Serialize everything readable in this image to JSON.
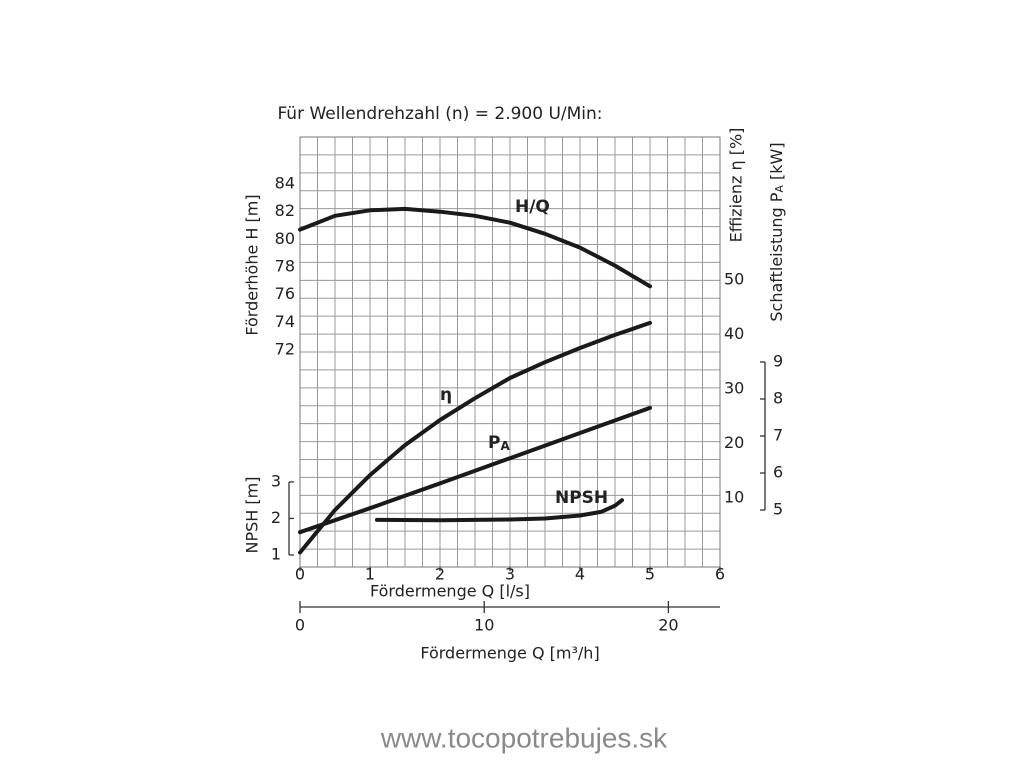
{
  "chart_data": {
    "type": "line",
    "title": "Für Wellendrehzahl (n) = 2.900 U/Min:",
    "x_title": "Fördermenge Q [l/s]",
    "xlim": [
      0,
      6
    ],
    "xticks": [
      0,
      1,
      2,
      3,
      4,
      5,
      6
    ],
    "x2_title": "Fördermenge Q [m³/h]",
    "x2lim": [
      0,
      22.8
    ],
    "x2ticks": [
      0,
      10,
      20
    ],
    "grid": true,
    "axes": {
      "y": {
        "title": "Förderhöhe H [m]",
        "lim": [
          56.3,
          87.4
        ],
        "ticks": [
          72,
          74,
          76,
          78,
          80,
          82,
          84
        ]
      },
      "npsh": {
        "title": "NPSH [m]",
        "lim": [
          0.67,
          12.45
        ],
        "ticks": [
          1,
          2,
          3
        ]
      },
      "y2": {
        "title": "Effizienz η [%]",
        "lim": [
          -2.66,
          76.2
        ],
        "ticks": [
          10,
          20,
          30,
          40,
          50
        ]
      },
      "y3": {
        "title": [
          "Schaftleistung P",
          "A",
          " [kW]"
        ],
        "lim": [
          3.46,
          15.08
        ],
        "ticks": [
          5,
          6,
          7,
          8,
          9
        ]
      }
    },
    "series": [
      {
        "name": "H/Q",
        "axis": "y",
        "color": "#1a1a1a",
        "x": [
          0,
          0.5,
          1,
          1.5,
          2,
          2.5,
          3,
          3.5,
          4,
          4.5,
          5
        ],
        "values": [
          80.7,
          81.7,
          82.1,
          82.2,
          82.0,
          81.7,
          81.2,
          80.4,
          79.4,
          78.1,
          76.6
        ]
      },
      {
        "name": "η",
        "axis": "y2",
        "color": "#1a1a1a",
        "x": [
          0,
          0.5,
          1,
          1.5,
          2,
          2.5,
          3,
          3.5,
          4,
          4.5,
          5
        ],
        "values": [
          0,
          7.8,
          14.2,
          19.7,
          24.3,
          28.3,
          32,
          34.9,
          37.5,
          39.9,
          42.1
        ]
      },
      {
        "name": [
          "P",
          "A"
        ],
        "axis": "y3",
        "color": "#1a1a1a",
        "x": [
          0,
          1,
          2,
          3,
          4,
          5
        ],
        "values": [
          4.4,
          5.05,
          5.72,
          6.4,
          7.08,
          7.76
        ]
      },
      {
        "name": "NPSH",
        "axis": "npsh",
        "color": "#1a1a1a",
        "x": [
          1.1,
          2,
          3,
          3.5,
          4,
          4.3,
          4.5,
          4.6
        ],
        "values": [
          1.96,
          1.95,
          1.97,
          2.0,
          2.08,
          2.18,
          2.35,
          2.5
        ]
      }
    ]
  },
  "footer": "www.tocopotrebujes.sk"
}
